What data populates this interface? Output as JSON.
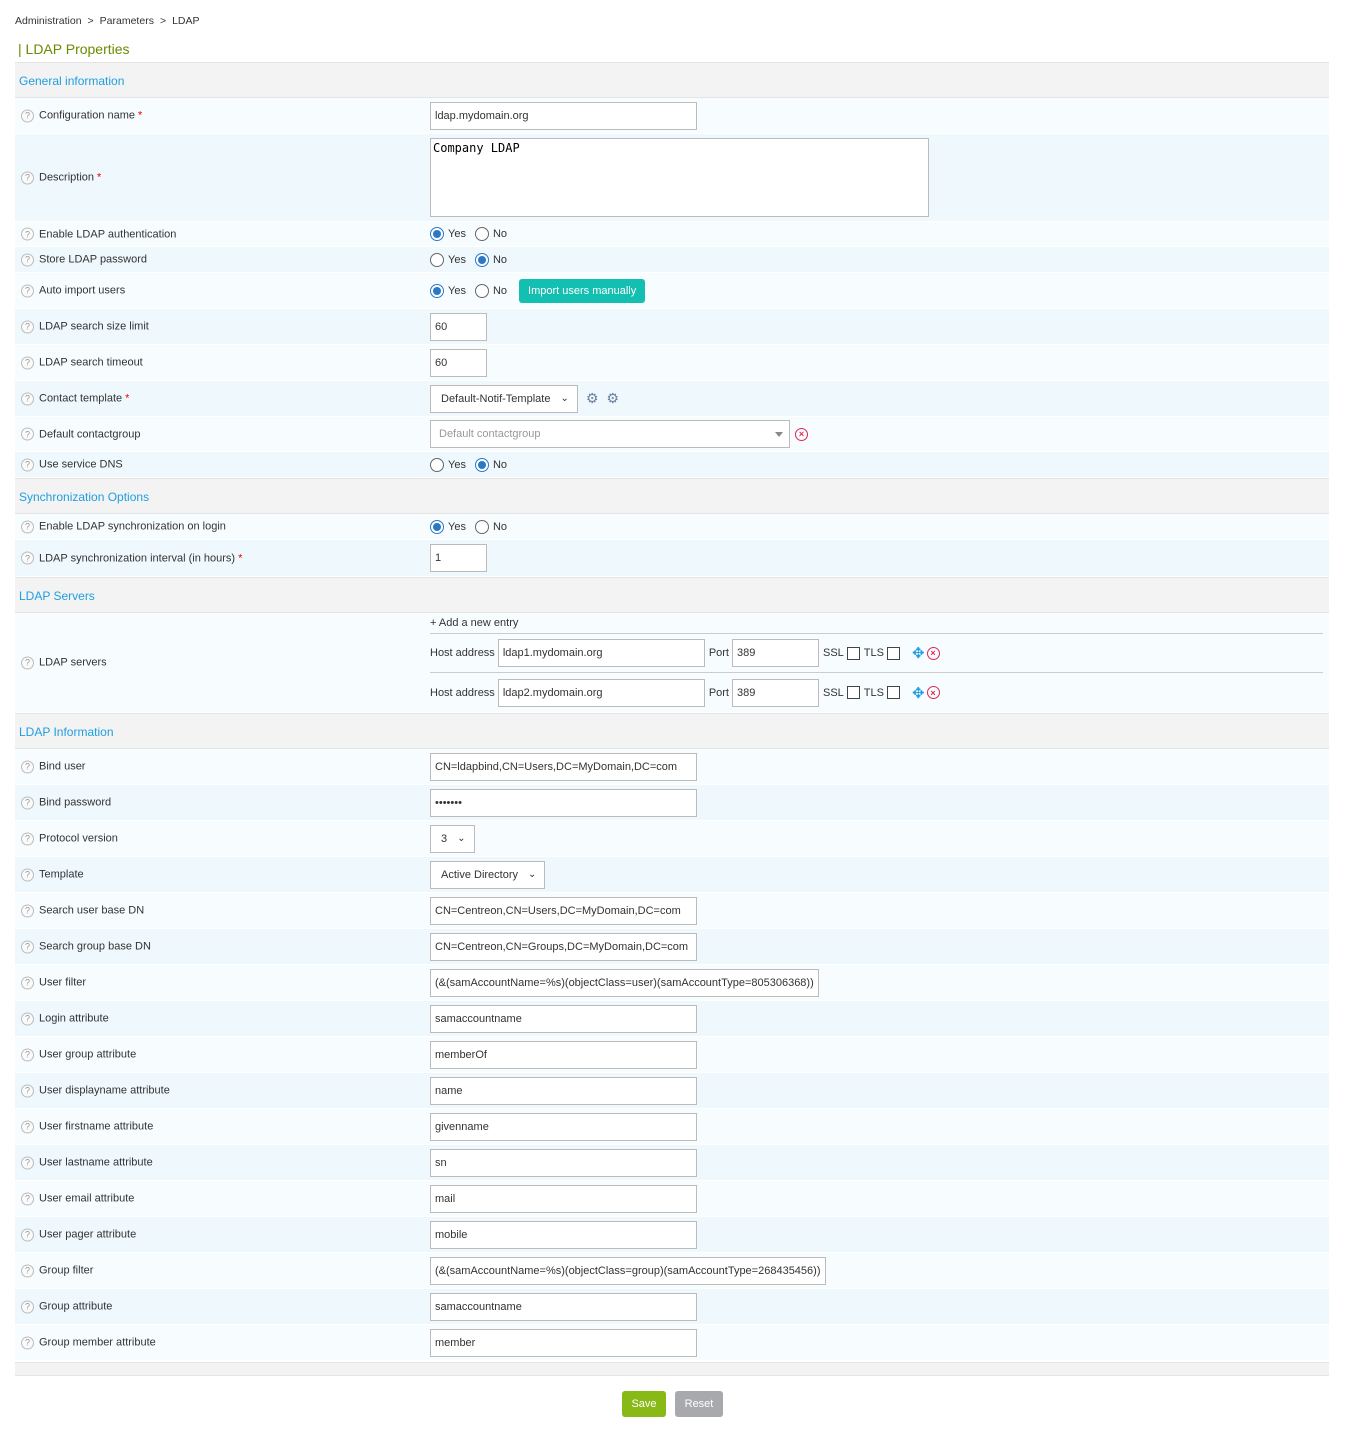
{
  "breadcrumb": [
    "Administration",
    "Parameters",
    "LDAP"
  ],
  "title": "| LDAP Properties",
  "sections": [
    {
      "title": "General information",
      "rows": [
        {
          "label": "Configuration name",
          "req": true,
          "type": "text",
          "value": "ldap.mydomain.org",
          "h": 36
        },
        {
          "label": "Description",
          "req": true,
          "type": "textarea",
          "value": "Company LDAP",
          "h": 88
        },
        {
          "label": "Enable LDAP authentication",
          "type": "radio",
          "options": [
            "Yes",
            "No"
          ],
          "selected": "Yes",
          "h": 25
        },
        {
          "label": "Store LDAP password",
          "type": "radio",
          "options": [
            "Yes",
            "No"
          ],
          "selected": "No",
          "h": 26
        },
        {
          "label": "Auto import users",
          "type": "radio",
          "options": [
            "Yes",
            "No"
          ],
          "selected": "Yes",
          "button": "Import users manually",
          "h": 36
        },
        {
          "label": "LDAP search size limit",
          "type": "text",
          "value": "60",
          "w": 57,
          "h": 36
        },
        {
          "label": "LDAP search timeout",
          "type": "text",
          "value": "60",
          "w": 57,
          "h": 36
        },
        {
          "label": "Contact template",
          "req": true,
          "type": "select",
          "value": "Default-Notif-Template",
          "icons": [
            "gear-info-icon",
            "gear-refresh-icon"
          ],
          "h": 36
        },
        {
          "label": "Default contactgroup",
          "type": "select2",
          "placeholder": "Default contactgroup",
          "h": 35
        },
        {
          "label": "Use service DNS",
          "type": "radio",
          "options": [
            "Yes",
            "No"
          ],
          "selected": "No",
          "h": 26
        }
      ]
    },
    {
      "title": "Synchronization Options",
      "rows": [
        {
          "label": "Enable LDAP synchronization on login",
          "type": "radio",
          "options": [
            "Yes",
            "No"
          ],
          "selected": "Yes",
          "h": 26
        },
        {
          "label": "LDAP synchronization interval (in hours)",
          "req": true,
          "type": "text",
          "value": "1",
          "w": 57,
          "h": 37
        }
      ]
    },
    {
      "title": "LDAP Servers",
      "rows": [
        {
          "label": "LDAP servers",
          "type": "servers",
          "add_label": "+ Add a new entry",
          "host_label": "Host address",
          "port_label": "Port",
          "ssl_label": "SSL",
          "tls_label": "TLS",
          "servers": [
            {
              "host": "ldap1.mydomain.org",
              "port": "389",
              "ssl": false,
              "tls": false
            },
            {
              "host": "ldap2.mydomain.org",
              "port": "389",
              "ssl": false,
              "tls": false
            }
          ],
          "h": 100
        }
      ]
    },
    {
      "title": "LDAP Information",
      "rows": [
        {
          "label": "Bind user",
          "type": "text",
          "value": "CN=ldapbind,CN=Users,DC=MyDomain,DC=com",
          "h": 36
        },
        {
          "label": "Bind password",
          "type": "text",
          "value": "•••••••",
          "h": 36
        },
        {
          "label": "Protocol version",
          "type": "select",
          "value": "3",
          "h": 36
        },
        {
          "label": "Template",
          "type": "select",
          "value": "Active Directory",
          "h": 36
        },
        {
          "label": "Search user base DN",
          "type": "text",
          "value": "CN=Centreon,CN=Users,DC=MyDomain,DC=com",
          "h": 36
        },
        {
          "label": "Search group base DN",
          "type": "text",
          "value": "CN=Centreon,CN=Groups,DC=MyDomain,DC=com",
          "h": 36
        },
        {
          "label": "User filter",
          "type": "text",
          "value": "(&(samAccountName=%s)(objectClass=user)(samAccountType=805306368))",
          "h": 36
        },
        {
          "label": "Login attribute",
          "type": "text",
          "value": "samaccountname",
          "h": 36
        },
        {
          "label": "User group attribute",
          "type": "text",
          "value": "memberOf",
          "h": 36
        },
        {
          "label": "User displayname attribute",
          "type": "text",
          "value": "name",
          "h": 36
        },
        {
          "label": "User firstname attribute",
          "type": "text",
          "value": "givenname",
          "h": 36
        },
        {
          "label": "User lastname attribute",
          "type": "text",
          "value": "sn",
          "h": 36
        },
        {
          "label": "User email attribute",
          "type": "text",
          "value": "mail",
          "h": 36
        },
        {
          "label": "User pager attribute",
          "type": "text",
          "value": "mobile",
          "h": 36
        },
        {
          "label": "Group filter",
          "type": "text",
          "value": "(&(samAccountName=%s)(objectClass=group)(samAccountType=268435456))",
          "h": 36
        },
        {
          "label": "Group attribute",
          "type": "text",
          "value": "samaccountname",
          "h": 36
        },
        {
          "label": "Group member attribute",
          "type": "text",
          "value": "member",
          "h": 36
        }
      ]
    }
  ],
  "buttons": {
    "save": "Save",
    "reset": "Reset"
  },
  "colors": {
    "accent": "#1e9ee0",
    "title": "#6a8a00",
    "import": "#13bfb0",
    "save": "#88b917",
    "reset": "#a8a9ad",
    "error": "#e0264d"
  }
}
